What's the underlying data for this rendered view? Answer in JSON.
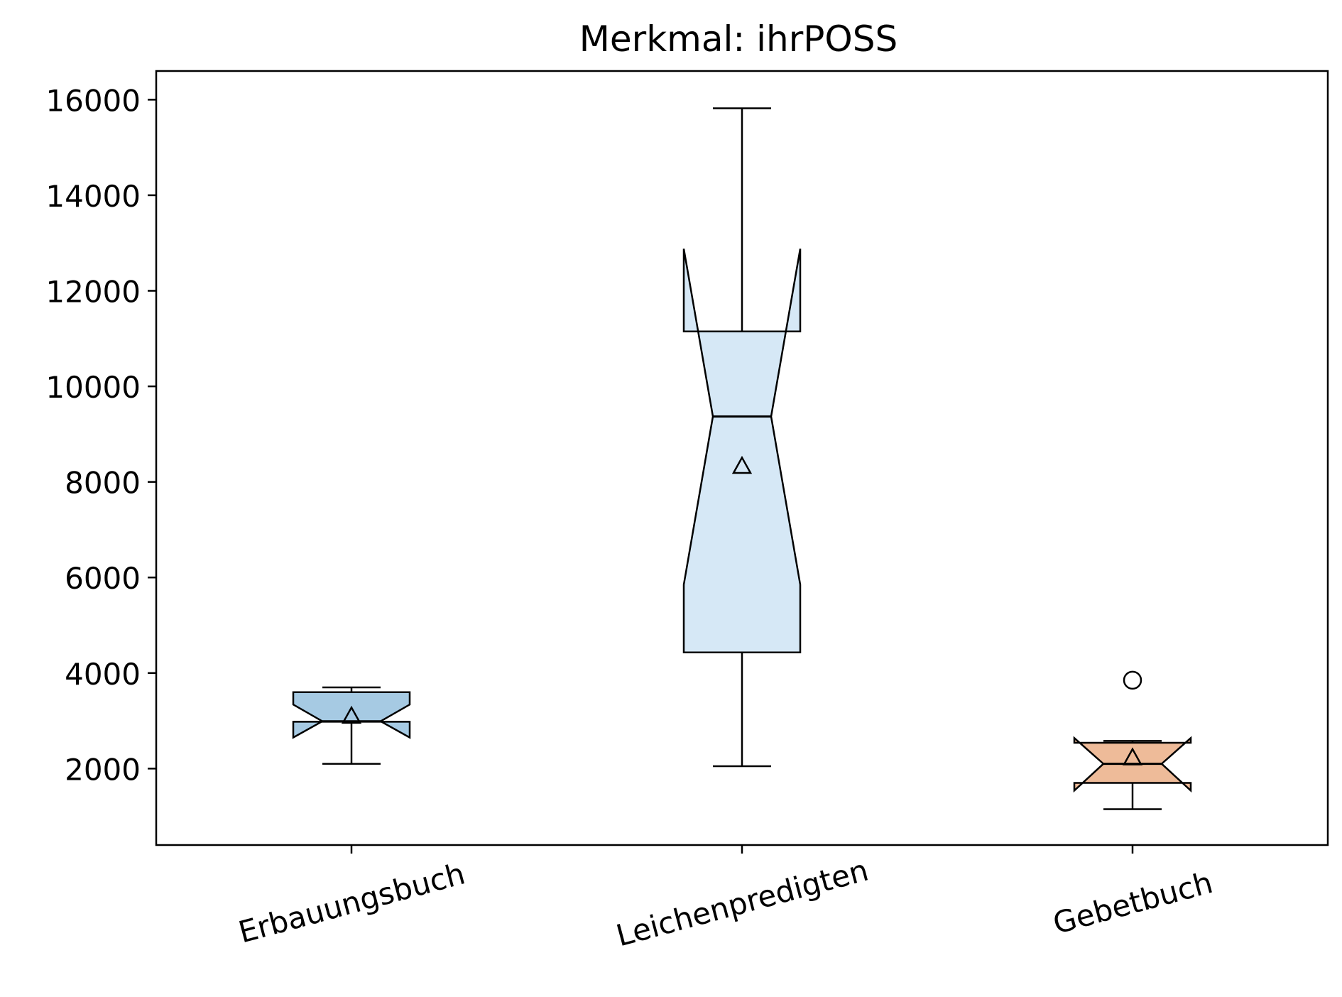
{
  "chart_data": {
    "type": "boxplot",
    "title": "Merkmal: ihrPOSS",
    "xlabel": "",
    "ylabel": "",
    "ylim": [
      400,
      16600
    ],
    "yticks": [
      2000,
      4000,
      6000,
      8000,
      10000,
      12000,
      14000,
      16000
    ],
    "categories": [
      "Erbauungsbuch",
      "Leichenpredigten",
      "Gebetbuch"
    ],
    "grid": false,
    "notched": true,
    "boxes": [
      {
        "category": "Erbauungsbuch",
        "color": "#a6cae3",
        "whisker_low": 2100,
        "q1": 2980,
        "median": 2990,
        "q3": 3600,
        "whisker_high": 3700,
        "notch_low": 2650,
        "notch_high": 3340,
        "mean": 3100,
        "outliers": []
      },
      {
        "category": "Leichenpredigten",
        "color": "#d6e8f6",
        "whisker_low": 2050,
        "q1": 4430,
        "median": 9370,
        "q3": 11150,
        "whisker_high": 15820,
        "notch_low": 5850,
        "notch_high": 12880,
        "mean": 8330,
        "outliers": []
      },
      {
        "category": "Gebetbuch",
        "color": "#eebb99",
        "whisker_low": 1150,
        "q1": 1700,
        "median": 2100,
        "q3": 2540,
        "whisker_high": 2580,
        "notch_low": 1540,
        "notch_high": 2640,
        "mean": 2230,
        "outliers": [
          3850
        ]
      }
    ]
  }
}
